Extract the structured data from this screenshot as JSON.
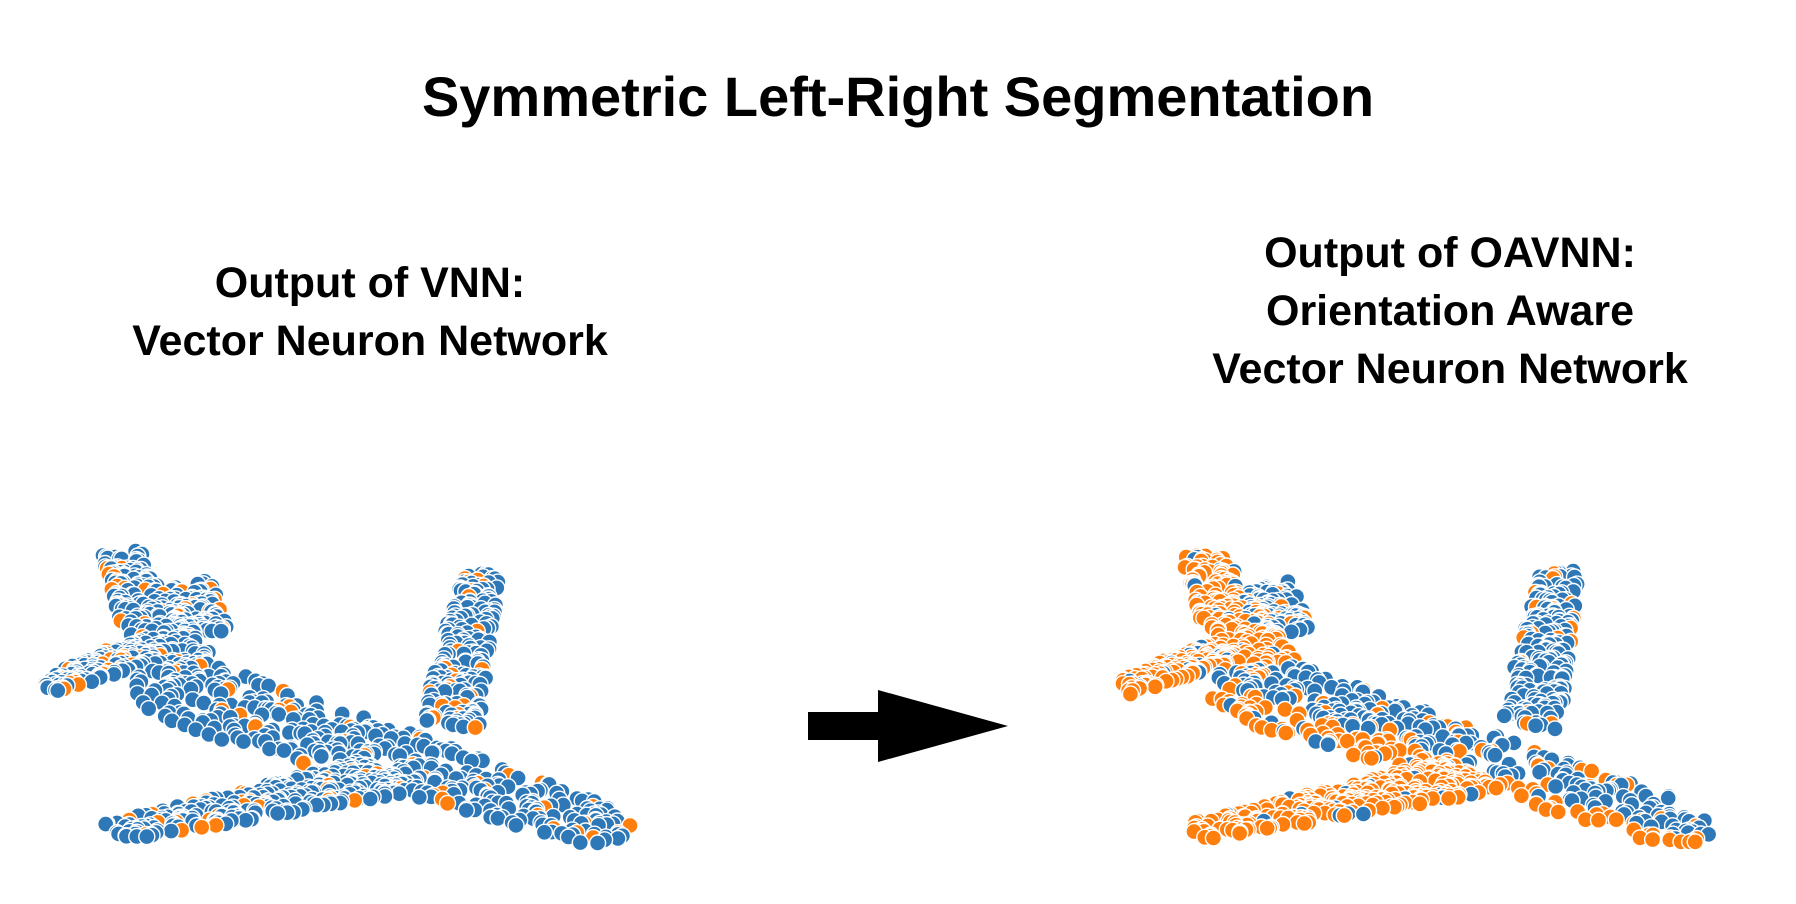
{
  "title": "Symmetric Left-Right Segmentation",
  "left_panel": {
    "caption_lines": [
      "Output of VNN:",
      "Vector Neuron Network"
    ]
  },
  "right_panel": {
    "caption_lines": [
      "Output of OAVNN:",
      "Orientation Aware",
      "Vector Neuron Network"
    ]
  },
  "colors": {
    "blue": "#2e78b7",
    "orange": "#ff7f0e",
    "arrow": "#000000"
  },
  "icons": [
    "airplane-point-cloud-vnn",
    "arrow-right-icon",
    "airplane-point-cloud-oavnn"
  ]
}
